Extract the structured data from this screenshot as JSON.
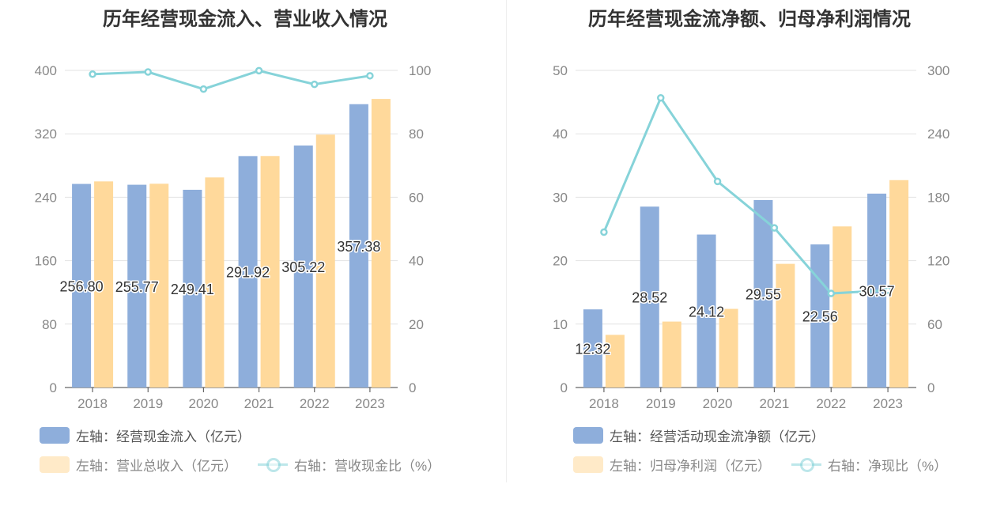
{
  "chart_data": [
    {
      "type": "bar",
      "title": "历年经营现金流入、营业收入情况",
      "categories": [
        "2018",
        "2019",
        "2020",
        "2021",
        "2022",
        "2023"
      ],
      "left_axis": {
        "min": 0,
        "max": 400,
        "ticks": [
          "0",
          "80",
          "160",
          "240",
          "320",
          "400"
        ]
      },
      "right_axis": {
        "min": 0,
        "max": 100,
        "ticks": [
          "0",
          "20",
          "40",
          "60",
          "80",
          "100"
        ]
      },
      "series": [
        {
          "name": "左轴：经营现金流入（亿元）",
          "type": "bar",
          "axis": "left",
          "color": "#8eaedb",
          "values": [
            256.8,
            255.77,
            249.41,
            291.92,
            305.22,
            357.38
          ],
          "labels": [
            "256.80",
            "255.77",
            "249.41",
            "291.92",
            "305.22",
            "357.38"
          ]
        },
        {
          "name": "左轴：营业总收入（亿元）",
          "type": "bar",
          "axis": "left",
          "color": "#ffd99b",
          "values": [
            260,
            257,
            265,
            292,
            319,
            364
          ]
        },
        {
          "name": "右轴：营收现金比（%）",
          "type": "line",
          "axis": "right",
          "color": "#86d3d9",
          "values": [
            98.8,
            99.5,
            94.1,
            99.9,
            95.6,
            98.3
          ]
        }
      ],
      "grid": true,
      "legend_position": "bottom-left"
    },
    {
      "type": "bar",
      "title": "历年经营现金流净额、归母净利润情况",
      "categories": [
        "2018",
        "2019",
        "2020",
        "2021",
        "2022",
        "2023"
      ],
      "left_axis": {
        "min": 0,
        "max": 50,
        "ticks": [
          "0",
          "10",
          "20",
          "30",
          "40",
          "50"
        ]
      },
      "right_axis": {
        "min": 0,
        "max": 300,
        "ticks": [
          "0",
          "60",
          "120",
          "180",
          "240",
          "300"
        ]
      },
      "series": [
        {
          "name": "左轴：经营活动现金流净额（亿元）",
          "type": "bar",
          "axis": "left",
          "color": "#8eaedb",
          "values": [
            12.32,
            28.52,
            24.12,
            29.55,
            22.56,
            30.57
          ],
          "labels": [
            "12.32",
            "28.52",
            "24.12",
            "29.55",
            "22.56",
            "30.57"
          ]
        },
        {
          "name": "左轴：归母净利润（亿元）",
          "type": "bar",
          "axis": "left",
          "color": "#ffd99b",
          "values": [
            8.3,
            10.4,
            12.4,
            19.5,
            25.4,
            32.7
          ]
        },
        {
          "name": "右轴：净现比（%）",
          "type": "line",
          "axis": "right",
          "color": "#86d3d9",
          "values": [
            147,
            274,
            195,
            151,
            89,
            92
          ]
        }
      ],
      "grid": true,
      "legend_position": "bottom-left"
    }
  ]
}
